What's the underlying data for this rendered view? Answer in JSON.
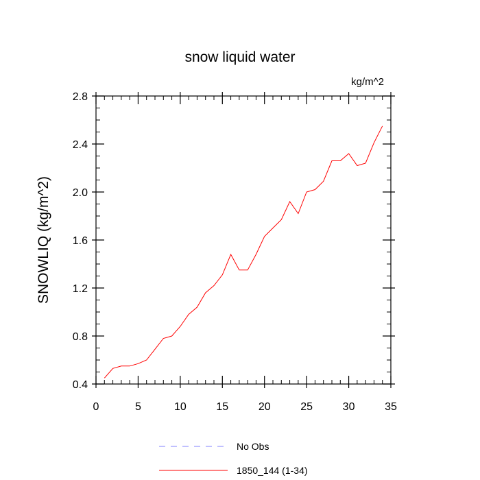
{
  "chart_data": {
    "type": "line",
    "title": "snow liquid water",
    "units": "kg/m^2",
    "ylabel": "SNOWLIQ  (kg/m^2)",
    "xlabel": "",
    "xlim": [
      0,
      35
    ],
    "ylim": [
      0.4,
      2.8
    ],
    "x_ticks": [
      0,
      5,
      10,
      15,
      20,
      25,
      30,
      35
    ],
    "y_ticks": [
      0.4,
      0.8,
      1.2,
      1.6,
      2.0,
      2.4,
      2.8
    ],
    "x_tick_labels": [
      "0",
      "5",
      "10",
      "15",
      "20",
      "25",
      "30",
      "35"
    ],
    "y_tick_labels": [
      "0.4",
      "0.8",
      "1.2",
      "1.6",
      "2.0",
      "2.4",
      "2.8"
    ],
    "grid": false,
    "legend_position": "bottom",
    "series": [
      {
        "name": "1850_144 (1-34)",
        "color": "#ff0000",
        "style": "solid",
        "x": [
          1,
          2,
          3,
          4,
          5,
          6,
          7,
          8,
          9,
          10,
          11,
          12,
          13,
          14,
          15,
          16,
          17,
          18,
          19,
          20,
          21,
          22,
          23,
          24,
          25,
          26,
          27,
          28,
          29,
          30,
          31,
          32,
          33,
          34
        ],
        "y": [
          0.45,
          0.53,
          0.55,
          0.55,
          0.57,
          0.6,
          0.69,
          0.78,
          0.8,
          0.88,
          0.98,
          1.04,
          1.16,
          1.22,
          1.31,
          1.48,
          1.35,
          1.35,
          1.48,
          1.63,
          1.7,
          1.77,
          1.92,
          1.82,
          2.0,
          2.02,
          2.09,
          2.26,
          2.26,
          2.32,
          2.22,
          2.24,
          2.41,
          2.55
        ]
      }
    ],
    "legend": [
      {
        "label": "No Obs",
        "color": "#8080ff",
        "style": "dashed"
      },
      {
        "label": "1850_144 (1-34)",
        "color": "#ff0000",
        "style": "solid"
      }
    ]
  }
}
